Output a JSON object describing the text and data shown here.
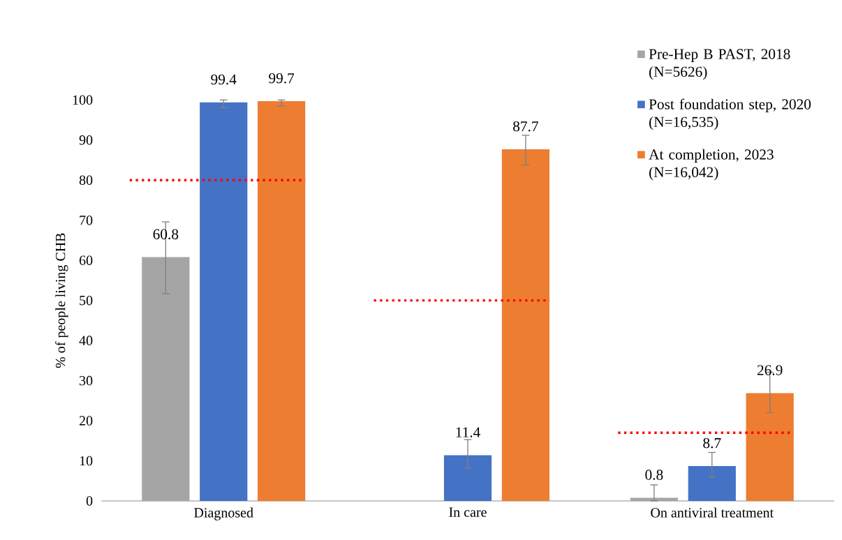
{
  "chart_data": {
    "type": "bar",
    "ylabel": "% of people living CHB",
    "categories": [
      "Diagnosed",
      "In care",
      "On antiviral treatment"
    ],
    "series": [
      {
        "name": "Pre-Hep B PAST, 2018 (N=5626)",
        "color": "#a5a5a5",
        "values": [
          60.8,
          null,
          0.8
        ],
        "errors": [
          [
            51.7,
            69.6
          ],
          null,
          [
            0,
            4.0
          ]
        ]
      },
      {
        "name": "Post foundation step, 2020 (N=16,535)",
        "color": "#4472c4",
        "values": [
          99.4,
          11.4,
          8.7
        ],
        "errors": [
          [
            98.1,
            100
          ],
          [
            8.2,
            15.3
          ],
          [
            5.9,
            12.1
          ]
        ]
      },
      {
        "name": "At completion, 2023 (N=16,042)",
        "color": "#ed7d31",
        "values": [
          99.7,
          87.7,
          26.9
        ],
        "errors": [
          [
            98.5,
            100
          ],
          [
            83.8,
            91.2
          ],
          [
            22.0,
            32.1
          ]
        ]
      }
    ],
    "ylim": [
      0,
      100
    ],
    "yticks": [
      0,
      10,
      20,
      30,
      40,
      50,
      60,
      70,
      80,
      90,
      100
    ],
    "ref_lines": [
      {
        "axis": "y",
        "value": 80,
        "color": "#ff0000",
        "line_style": "dotted"
      },
      {
        "axis": "y",
        "value": 50,
        "color": "#ff0000",
        "line_style": "dotted"
      },
      {
        "axis": "y",
        "value": 17.0,
        "color": "#ff0000",
        "line_style": "dotted"
      }
    ],
    "data_labels": true,
    "legend": "top right",
    "grid": false
  }
}
